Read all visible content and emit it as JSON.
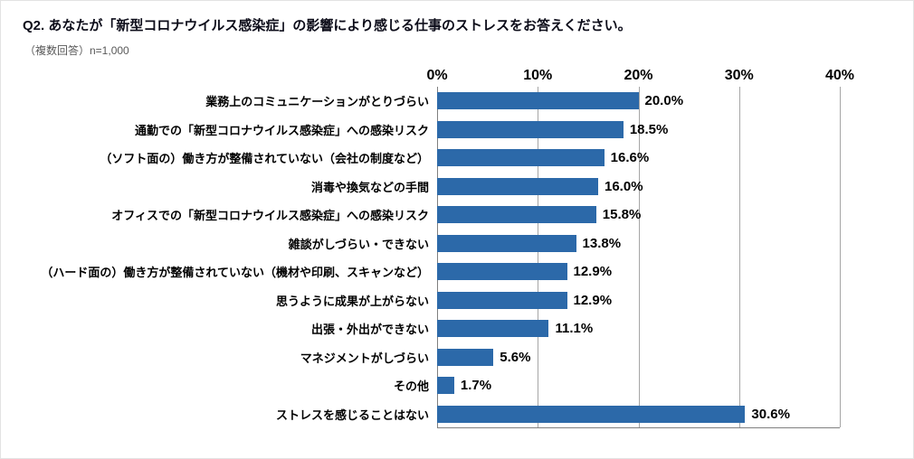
{
  "title": "Q2. あなたが「新型コロナウイルス感染症」の影響により感じる仕事のストレスをお答えください。",
  "subtitle": "（複数回答）n=1,000",
  "chart_data": {
    "type": "bar",
    "orientation": "horizontal",
    "title": "Q2. あなたが「新型コロナウイルス感染症」の影響により感じる仕事のストレスをお答えください。",
    "note": "（複数回答）n=1,000",
    "categories": [
      "業務上のコミュニケーションがとりづらい",
      "通勤での「新型コロナウイルス感染症」への感染リスク",
      "（ソフト面の）働き方が整備されていない（会社の制度など）",
      "消毒や換気などの手間",
      "オフィスでの「新型コロナウイルス感染症」への感染リスク",
      "雑談がしづらい・できない",
      "（ハード面の）働き方が整備されていない（機材や印刷、スキャンなど）",
      "思うように成果が上がらない",
      "出張・外出ができない",
      "マネジメントがしづらい",
      "その他",
      "ストレスを感じることはない"
    ],
    "values": [
      20.0,
      18.5,
      16.6,
      16.0,
      15.8,
      13.8,
      12.9,
      12.9,
      11.1,
      5.6,
      1.7,
      30.6
    ],
    "value_labels": [
      "20.0%",
      "18.5%",
      "16.6%",
      "16.0%",
      "15.8%",
      "13.8%",
      "12.9%",
      "12.9%",
      "11.1%",
      "5.6%",
      "1.7%",
      "30.6%"
    ],
    "xticks": [
      "0%",
      "10%",
      "20%",
      "30%",
      "40%"
    ],
    "xlim": [
      0,
      40
    ],
    "bar_color": "#2c69a9",
    "grid": true,
    "legend": "none"
  }
}
